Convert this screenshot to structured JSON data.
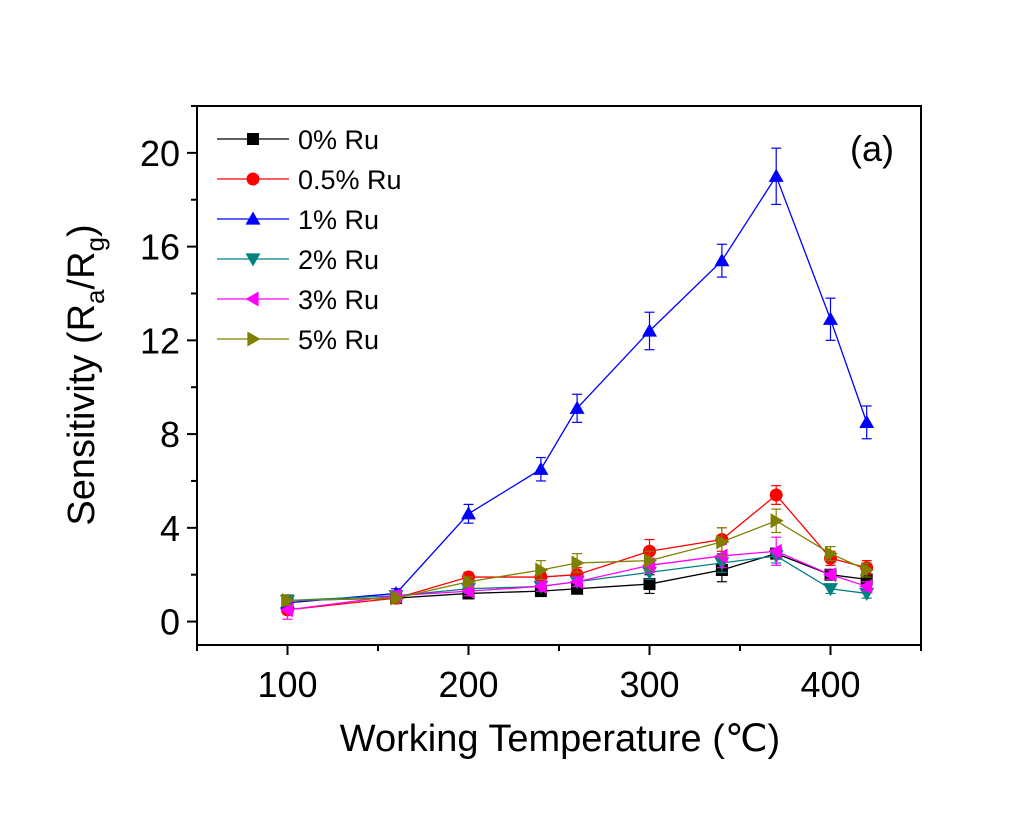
{
  "chart_data": {
    "type": "line",
    "panel_label": "(a)",
    "xlabel": "Working Temperature (℃)",
    "ylabel": {
      "base": "Sensitivity (R",
      "sub1": "a",
      "mid": "/R",
      "sub2": "g",
      "end": ")"
    },
    "xlim": [
      50,
      450
    ],
    "ylim": [
      -1,
      22
    ],
    "x_ticks": [
      100,
      200,
      300,
      400
    ],
    "y_ticks": [
      0,
      4,
      8,
      12,
      16,
      20
    ],
    "x": [
      100,
      160,
      200,
      240,
      260,
      300,
      340,
      370,
      400,
      420
    ],
    "legend_position": "top-left",
    "grid": false,
    "series": [
      {
        "name": "0% Ru",
        "color": "#000000",
        "marker": "square",
        "values": [
          0.9,
          1.0,
          1.2,
          1.3,
          1.4,
          1.6,
          2.2,
          2.9,
          2.0,
          1.8
        ],
        "errors": [
          0.2,
          0.2,
          0.2,
          0.2,
          0.2,
          0.4,
          0.5,
          0.2,
          0.2,
          0.2
        ]
      },
      {
        "name": "0.5% Ru",
        "color": "#ff0000",
        "marker": "circle",
        "values": [
          0.5,
          1.0,
          1.9,
          1.9,
          2.0,
          3.0,
          3.5,
          5.4,
          2.7,
          2.3
        ],
        "errors": [
          0.2,
          0.2,
          0.2,
          0.2,
          0.3,
          0.5,
          0.5,
          0.4,
          0.3,
          0.3
        ]
      },
      {
        "name": "1% Ru",
        "color": "#0000ff",
        "marker": "triangle-up",
        "values": [
          0.8,
          1.2,
          4.6,
          6.5,
          9.1,
          12.4,
          15.4,
          19.0,
          12.9,
          8.5
        ],
        "errors": [
          0.2,
          0.2,
          0.4,
          0.5,
          0.6,
          0.8,
          0.7,
          1.2,
          0.9,
          0.7
        ]
      },
      {
        "name": "2% Ru",
        "color": "#008080",
        "marker": "triangle-down",
        "values": [
          0.9,
          1.1,
          1.4,
          1.5,
          1.7,
          2.1,
          2.5,
          2.8,
          1.4,
          1.2
        ],
        "errors": [
          0.2,
          0.2,
          0.2,
          0.2,
          0.2,
          0.3,
          0.4,
          0.3,
          0.2,
          0.2
        ]
      },
      {
        "name": "3% Ru",
        "color": "#ff00ff",
        "marker": "triangle-left",
        "values": [
          0.5,
          1.1,
          1.3,
          1.5,
          1.7,
          2.4,
          2.8,
          3.0,
          2.0,
          1.5
        ],
        "errors": [
          0.4,
          0.2,
          0.2,
          0.2,
          0.2,
          0.3,
          0.5,
          0.6,
          0.2,
          0.2
        ]
      },
      {
        "name": "5% Ru",
        "color": "#808000",
        "marker": "triangle-right",
        "values": [
          0.9,
          1.0,
          1.7,
          2.2,
          2.5,
          2.6,
          3.4,
          4.3,
          2.9,
          2.2
        ],
        "errors": [
          0.2,
          0.2,
          0.2,
          0.4,
          0.4,
          0.4,
          0.6,
          0.5,
          0.3,
          0.3
        ]
      }
    ]
  }
}
